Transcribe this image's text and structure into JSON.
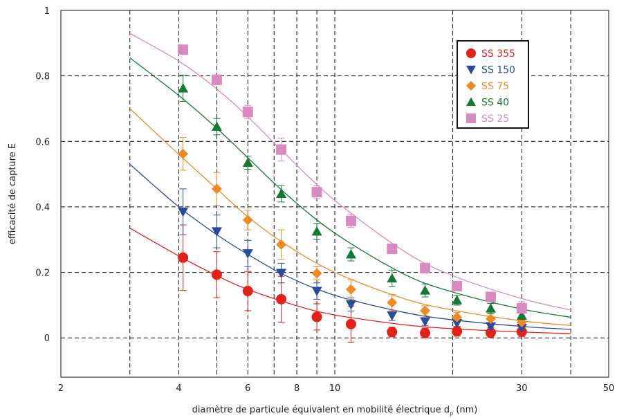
{
  "chart_data": {
    "type": "scatter",
    "title": "",
    "xlabel_main": "diamètre de particule équivalent en mobilité électrique d",
    "xlabel_sub": "p",
    "xlabel_unit": " (nm)",
    "ylabel": "efficacité de capture E",
    "x_scale": "log",
    "xlim": [
      2,
      50
    ],
    "ylim": [
      -0.12,
      1
    ],
    "x_ticks": [
      2,
      4,
      6,
      8,
      10,
      30,
      50
    ],
    "x_tick_labels": [
      "2",
      "4",
      "6",
      "8",
      "10",
      "30",
      "50"
    ],
    "x_gridlines": [
      3,
      4,
      5,
      6,
      7,
      8,
      9,
      10,
      20,
      30,
      40
    ],
    "y_ticks": [
      0,
      0.2,
      0.4,
      0.6,
      0.8,
      1
    ],
    "y_tick_labels": [
      "0",
      "0.2",
      "0.4",
      "0.6",
      "0.8",
      "1"
    ],
    "grid": true,
    "legend_position": "top-right",
    "series": [
      {
        "name": "SS 355",
        "color": "#e32119",
        "marker": "circle",
        "points": [
          {
            "x": 4.1,
            "y": 0.245,
            "lo": 0.145,
            "hi": 0.345
          },
          {
            "x": 5.0,
            "y": 0.193,
            "lo": 0.123,
            "hi": 0.263
          },
          {
            "x": 6.0,
            "y": 0.143,
            "lo": 0.083,
            "hi": 0.203
          },
          {
            "x": 7.3,
            "y": 0.118,
            "lo": 0.048,
            "hi": 0.188
          },
          {
            "x": 9.0,
            "y": 0.064,
            "lo": 0.024,
            "hi": 0.104
          },
          {
            "x": 11.0,
            "y": 0.042,
            "lo": -0.013,
            "hi": 0.097
          },
          {
            "x": 14.0,
            "y": 0.018,
            "lo": 0.003,
            "hi": 0.033
          },
          {
            "x": 17.0,
            "y": 0.015,
            "lo": 0.0,
            "hi": 0.03
          },
          {
            "x": 20.5,
            "y": 0.02,
            "lo": 0.005,
            "hi": 0.035
          },
          {
            "x": 25.0,
            "y": 0.016,
            "lo": 0.001,
            "hi": 0.031
          },
          {
            "x": 30.0,
            "y": 0.019,
            "lo": 0.004,
            "hi": 0.034
          }
        ],
        "fit": [
          [
            3,
            0.335
          ],
          [
            4,
            0.25
          ],
          [
            5,
            0.19
          ],
          [
            6,
            0.148
          ],
          [
            8,
            0.098
          ],
          [
            10,
            0.07
          ],
          [
            15,
            0.04
          ],
          [
            20,
            0.028
          ],
          [
            30,
            0.018
          ],
          [
            40,
            0.013
          ]
        ]
      },
      {
        "name": "SS 150",
        "color": "#2a4b9b",
        "marker": "triangle-down",
        "points": [
          {
            "x": 4.1,
            "y": 0.385,
            "lo": 0.315,
            "hi": 0.455
          },
          {
            "x": 5.0,
            "y": 0.325,
            "lo": 0.275,
            "hi": 0.375
          },
          {
            "x": 6.0,
            "y": 0.258,
            "lo": 0.218,
            "hi": 0.298
          },
          {
            "x": 7.3,
            "y": 0.198,
            "lo": 0.168,
            "hi": 0.228
          },
          {
            "x": 9.0,
            "y": 0.143,
            "lo": 0.118,
            "hi": 0.168
          },
          {
            "x": 11.0,
            "y": 0.102,
            "lo": 0.082,
            "hi": 0.122
          },
          {
            "x": 14.0,
            "y": 0.068,
            "lo": 0.053,
            "hi": 0.083
          },
          {
            "x": 17.0,
            "y": 0.05,
            "lo": 0.038,
            "hi": 0.062
          },
          {
            "x": 20.5,
            "y": 0.045,
            "lo": 0.033,
            "hi": 0.057
          },
          {
            "x": 25.0,
            "y": 0.035,
            "lo": 0.025,
            "hi": 0.045
          },
          {
            "x": 30.0,
            "y": 0.03,
            "lo": 0.02,
            "hi": 0.04
          }
        ],
        "fit": [
          [
            3,
            0.53
          ],
          [
            4,
            0.4
          ],
          [
            5,
            0.315
          ],
          [
            6,
            0.255
          ],
          [
            7.5,
            0.19
          ],
          [
            10,
            0.13
          ],
          [
            15,
            0.078
          ],
          [
            20,
            0.055
          ],
          [
            30,
            0.035
          ],
          [
            40,
            0.026
          ]
        ]
      },
      {
        "name": "SS 75",
        "color": "#ef8a22",
        "marker": "diamond",
        "points": [
          {
            "x": 4.1,
            "y": 0.562,
            "lo": 0.512,
            "hi": 0.612
          },
          {
            "x": 5.0,
            "y": 0.455,
            "lo": 0.405,
            "hi": 0.505
          },
          {
            "x": 6.0,
            "y": 0.36,
            "lo": 0.33,
            "hi": 0.39
          },
          {
            "x": 7.3,
            "y": 0.285,
            "lo": 0.24,
            "hi": 0.33
          },
          {
            "x": 9.0,
            "y": 0.197,
            "lo": 0.177,
            "hi": 0.217
          },
          {
            "x": 11.0,
            "y": 0.148,
            "lo": 0.118,
            "hi": 0.178
          },
          {
            "x": 14.0,
            "y": 0.108,
            "lo": 0.083,
            "hi": 0.133
          },
          {
            "x": 17.0,
            "y": 0.083,
            "lo": 0.068,
            "hi": 0.098
          },
          {
            "x": 20.5,
            "y": 0.063,
            "lo": 0.048,
            "hi": 0.078
          },
          {
            "x": 25.0,
            "y": 0.058,
            "lo": 0.043,
            "hi": 0.073
          },
          {
            "x": 30.0,
            "y": 0.048,
            "lo": 0.033,
            "hi": 0.063
          }
        ],
        "fit": [
          [
            3,
            0.7
          ],
          [
            4,
            0.56
          ],
          [
            5,
            0.455
          ],
          [
            6,
            0.37
          ],
          [
            7.5,
            0.285
          ],
          [
            10,
            0.2
          ],
          [
            15,
            0.12
          ],
          [
            20,
            0.085
          ],
          [
            30,
            0.052
          ],
          [
            40,
            0.038
          ]
        ]
      },
      {
        "name": "SS 40",
        "color": "#137a34",
        "marker": "triangle-up",
        "points": [
          {
            "x": 4.1,
            "y": 0.762,
            "lo": 0.722,
            "hi": 0.802
          },
          {
            "x": 5.0,
            "y": 0.645,
            "lo": 0.62,
            "hi": 0.67
          },
          {
            "x": 6.0,
            "y": 0.535,
            "lo": 0.515,
            "hi": 0.555
          },
          {
            "x": 7.3,
            "y": 0.44,
            "lo": 0.415,
            "hi": 0.465
          },
          {
            "x": 9.0,
            "y": 0.325,
            "lo": 0.3,
            "hi": 0.35
          },
          {
            "x": 11.0,
            "y": 0.255,
            "lo": 0.235,
            "hi": 0.275
          },
          {
            "x": 14.0,
            "y": 0.182,
            "lo": 0.157,
            "hi": 0.207
          },
          {
            "x": 17.0,
            "y": 0.145,
            "lo": 0.125,
            "hi": 0.165
          },
          {
            "x": 20.5,
            "y": 0.115,
            "lo": 0.1,
            "hi": 0.13
          },
          {
            "x": 25.0,
            "y": 0.09,
            "lo": 0.075,
            "hi": 0.105
          },
          {
            "x": 30.0,
            "y": 0.068,
            "lo": 0.053,
            "hi": 0.083
          }
        ],
        "fit": [
          [
            3,
            0.855
          ],
          [
            4,
            0.74
          ],
          [
            5,
            0.64
          ],
          [
            6,
            0.55
          ],
          [
            7.5,
            0.44
          ],
          [
            10,
            0.32
          ],
          [
            15,
            0.195
          ],
          [
            20,
            0.14
          ],
          [
            30,
            0.088
          ],
          [
            40,
            0.063
          ]
        ]
      },
      {
        "name": "SS 25",
        "color": "#d98ac0",
        "marker": "square",
        "points": [
          {
            "x": 4.1,
            "y": 0.88,
            "lo": 0.87,
            "hi": 0.89
          },
          {
            "x": 5.0,
            "y": 0.788,
            "lo": 0.773,
            "hi": 0.803
          },
          {
            "x": 6.0,
            "y": 0.69,
            "lo": 0.67,
            "hi": 0.71
          },
          {
            "x": 7.3,
            "y": 0.575,
            "lo": 0.54,
            "hi": 0.61
          },
          {
            "x": 9.0,
            "y": 0.445,
            "lo": 0.425,
            "hi": 0.465
          },
          {
            "x": 11.0,
            "y": 0.357,
            "lo": 0.337,
            "hi": 0.377
          },
          {
            "x": 14.0,
            "y": 0.272,
            "lo": 0.257,
            "hi": 0.287
          },
          {
            "x": 17.0,
            "y": 0.213,
            "lo": 0.198,
            "hi": 0.228
          },
          {
            "x": 20.5,
            "y": 0.158,
            "lo": 0.143,
            "hi": 0.173
          },
          {
            "x": 25.0,
            "y": 0.125,
            "lo": 0.11,
            "hi": 0.14
          },
          {
            "x": 30.0,
            "y": 0.09,
            "lo": 0.07,
            "hi": 0.11
          }
        ],
        "fit": [
          [
            3,
            0.93
          ],
          [
            4,
            0.845
          ],
          [
            5,
            0.76
          ],
          [
            6,
            0.675
          ],
          [
            7.5,
            0.56
          ],
          [
            10,
            0.42
          ],
          [
            15,
            0.265
          ],
          [
            20,
            0.19
          ],
          [
            30,
            0.12
          ],
          [
            40,
            0.085
          ]
        ]
      }
    ]
  }
}
